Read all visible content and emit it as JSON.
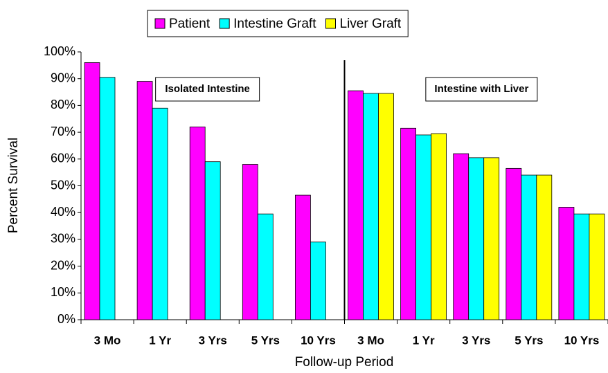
{
  "chart_data": {
    "type": "bar",
    "categories": [
      "3 Mo",
      "1 Yr",
      "3 Yrs",
      "5 Yrs",
      "10 Yrs",
      "3 Mo",
      "1 Yr",
      "3 Yrs",
      "5 Yrs",
      "10 Yrs"
    ],
    "series": [
      {
        "name": "Patient",
        "color": "#ff00ff",
        "values": [
          96,
          89,
          72,
          58,
          46.5,
          85.5,
          71.5,
          62,
          56.5,
          42
        ]
      },
      {
        "name": "Intestine Graft",
        "color": "#00ffff",
        "values": [
          90.5,
          79,
          59,
          39.5,
          29,
          84.5,
          69,
          60.5,
          54,
          39.5
        ]
      },
      {
        "name": "Liver Graft",
        "color": "#ffff00",
        "values": [
          null,
          null,
          null,
          null,
          null,
          84.5,
          69.5,
          60.5,
          54,
          39.5
        ]
      }
    ],
    "ylim": [
      0,
      100
    ],
    "yticks": [
      {
        "value": 0,
        "label": "0%"
      },
      {
        "value": 10,
        "label": "10%"
      },
      {
        "value": 20,
        "label": "20%"
      },
      {
        "value": 30,
        "label": "30%"
      },
      {
        "value": 40,
        "label": "40%"
      },
      {
        "value": 50,
        "label": "50%"
      },
      {
        "value": 60,
        "label": "60%"
      },
      {
        "value": 70,
        "label": "70%"
      },
      {
        "value": 80,
        "label": "80%"
      },
      {
        "value": 90,
        "label": "90%"
      },
      {
        "value": 100,
        "label": "100%"
      }
    ],
    "ylabel": "Percent Survival",
    "xlabel": "Follow-up Period",
    "annotations": [
      "Isolated Intestine",
      "Intestine with Liver"
    ],
    "legend": "top",
    "grid": false
  }
}
